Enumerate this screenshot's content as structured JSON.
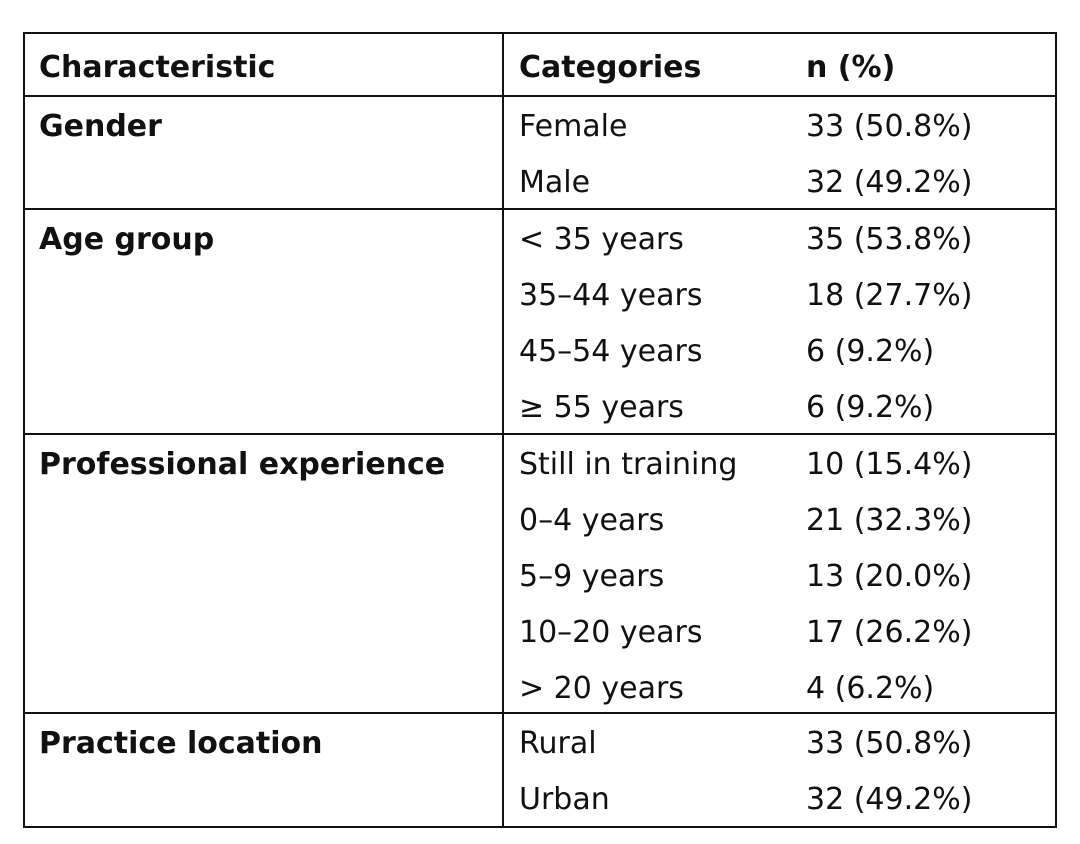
{
  "header": {
    "characteristic": "Characteristic",
    "categories": "Categories",
    "n_pct": "n (%)"
  },
  "groups": [
    {
      "characteristic": "Gender",
      "rows": [
        {
          "category": "Female",
          "value": "33 (50.8%)"
        },
        {
          "category": "Male",
          "value": "32 (49.2%)"
        }
      ]
    },
    {
      "characteristic": "Age group",
      "rows": [
        {
          "category": "< 35 years",
          "value": "35 (53.8%)"
        },
        {
          "category": "35–44 years",
          "value": "18 (27.7%)"
        },
        {
          "category": "45–54 years",
          "value": "6 (9.2%)"
        },
        {
          "category": "≥ 55 years",
          "value": "6 (9.2%)"
        }
      ]
    },
    {
      "characteristic": "Professional experience",
      "rows": [
        {
          "category": "Still in training",
          "value": "10 (15.4%)"
        },
        {
          "category": "0–4 years",
          "value": "21 (32.3%)"
        },
        {
          "category": "5–9 years",
          "value": "13 (20.0%)"
        },
        {
          "category": "10–20 years",
          "value": "17 (26.2%)"
        },
        {
          "category": "> 20 years",
          "value": "4 (6.2%)"
        }
      ]
    },
    {
      "characteristic": "Practice location",
      "rows": [
        {
          "category": "Rural",
          "value": "33 (50.8%)"
        },
        {
          "category": "Urban",
          "value": "32 (49.2%)"
        }
      ]
    }
  ]
}
